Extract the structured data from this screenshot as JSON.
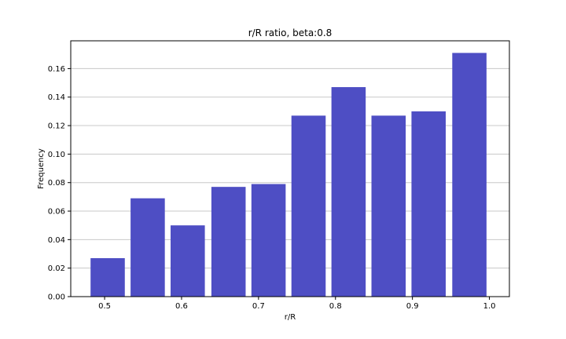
{
  "chart_data": {
    "type": "bar",
    "title": "r/R ratio, beta:0.8",
    "xlabel": "r/R",
    "ylabel": "Frequency",
    "x": [
      0.5,
      0.55,
      0.6,
      0.65,
      0.7,
      0.75,
      0.8,
      0.85,
      0.9,
      0.95,
      1.0
    ],
    "bins": [
      {
        "center": 0.504,
        "value": 0.027
      },
      {
        "center": 0.556,
        "value": 0.069
      },
      {
        "center": 0.608,
        "value": 0.05
      },
      {
        "center": 0.661,
        "value": 0.077
      },
      {
        "center": 0.713,
        "value": 0.079
      },
      {
        "center": 0.765,
        "value": 0.127
      },
      {
        "center": 0.817,
        "value": 0.147
      },
      {
        "center": 0.869,
        "value": 0.127
      },
      {
        "center": 0.921,
        "value": 0.13
      },
      {
        "center": 0.974,
        "value": 0.171
      }
    ],
    "bar_width": 0.0445,
    "xlim": [
      0.456,
      1.026
    ],
    "ylim": [
      0,
      0.1795
    ],
    "xticks": [
      "0.5",
      "0.6",
      "0.7",
      "0.8",
      "0.9",
      "1.0"
    ],
    "xtick_values": [
      0.5,
      0.6,
      0.7,
      0.8,
      0.9,
      1.0
    ],
    "yticks": [
      "0.00",
      "0.02",
      "0.04",
      "0.06",
      "0.08",
      "0.10",
      "0.12",
      "0.14",
      "0.16"
    ],
    "ytick_values": [
      0,
      0.02,
      0.04,
      0.06,
      0.08,
      0.1,
      0.12,
      0.14,
      0.16
    ],
    "grid": "y",
    "bar_color": "#4e4ec4",
    "grid_color": "#c8c8c8"
  }
}
